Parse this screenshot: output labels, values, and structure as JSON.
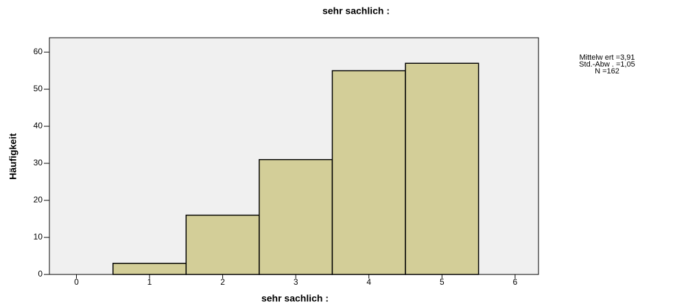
{
  "chart_data": {
    "type": "histogram",
    "title": "sehr sachlich :",
    "xlabel": "sehr sachlich :",
    "ylabel": "Häufigkeit",
    "bins": [
      0.5,
      1.5,
      2.5,
      3.5,
      4.5,
      5.5
    ],
    "values": [
      3,
      16,
      31,
      55,
      57
    ],
    "color": "#d3ce98",
    "xlim": [
      -0.37,
      6.32
    ],
    "xticks": [
      0,
      1,
      2,
      3,
      4,
      5,
      6
    ],
    "ylim": [
      0,
      63.9
    ],
    "yticks": [
      0,
      10,
      20,
      30,
      40,
      50,
      60
    ],
    "grid": false,
    "annotations": [
      "Mittelw ert =3,91",
      "Std.-Abw . =1,05",
      "N =162"
    ]
  }
}
